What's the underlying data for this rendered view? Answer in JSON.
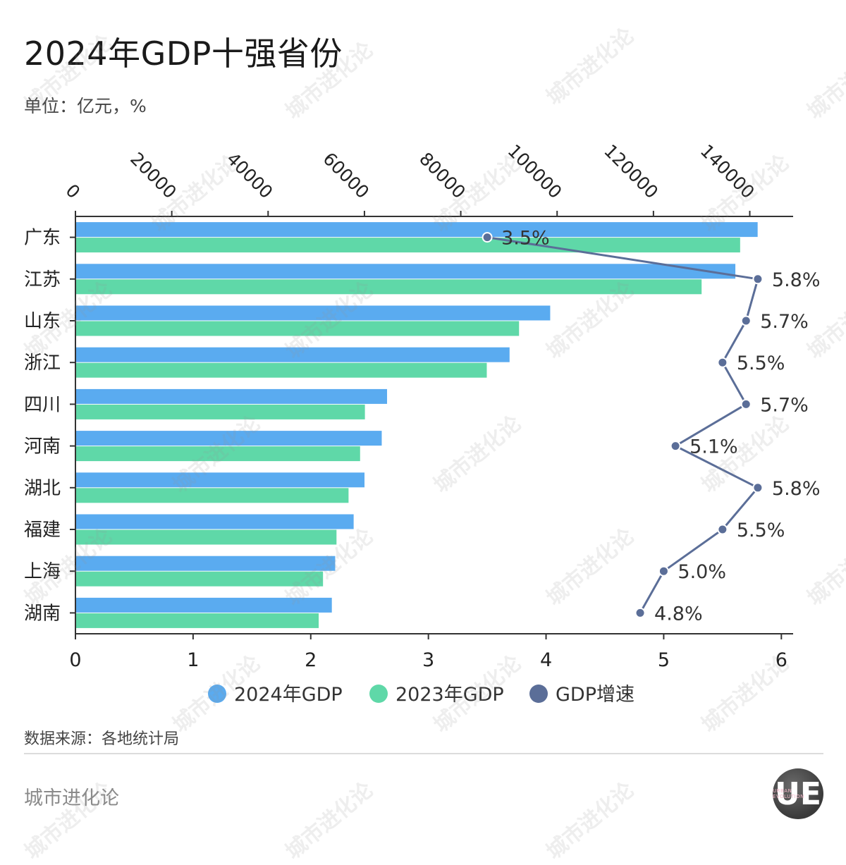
{
  "header": {
    "title": "2024年GDP十强省份",
    "unit": "单位：亿元，%"
  },
  "footer": {
    "source": "数据来源：各地统计局",
    "brand": "城市进化论",
    "logo_text": "UE",
    "logo_sub": "URBAN EVOLUTION"
  },
  "watermark": {
    "text": "城市进化论"
  },
  "colors": {
    "gdp2024": "#5aabf0",
    "gdp2023": "#5fd8a8",
    "growth": "#5b6e98",
    "axis": "#333333"
  },
  "chart_data": {
    "type": "bar",
    "orientation": "horizontal",
    "categories": [
      "广东",
      "江苏",
      "山东",
      "浙江",
      "四川",
      "河南",
      "湖北",
      "福建",
      "上海",
      "湖南"
    ],
    "series": [
      {
        "name": "2024年GDP",
        "type": "bar",
        "axis": "top",
        "values": [
          141634,
          137008,
          98566,
          90131,
          64697,
          63590,
          60013,
          57761,
          53927,
          53231
        ]
      },
      {
        "name": "2023年GDP",
        "type": "bar",
        "axis": "top",
        "values": [
          138000,
          130000,
          92100,
          85400,
          60100,
          59100,
          56700,
          54200,
          51400,
          50500
        ]
      },
      {
        "name": "GDP增速",
        "type": "line",
        "axis": "bottom",
        "values": [
          3.5,
          5.8,
          5.7,
          5.5,
          5.7,
          5.1,
          5.8,
          5.5,
          5.0,
          4.8
        ],
        "labels": [
          "3.5%",
          "5.8%",
          "5.7%",
          "5.5%",
          "5.7%",
          "5.1%",
          "5.8%",
          "5.5%",
          "5.0%",
          "4.8%"
        ]
      }
    ],
    "x_top": {
      "ticks": [
        0,
        20000,
        40000,
        60000,
        80000,
        100000,
        120000,
        140000
      ],
      "range": [
        0,
        149000
      ]
    },
    "x_bottom": {
      "ticks": [
        0,
        1,
        2,
        3,
        4,
        5,
        6
      ],
      "range": [
        0,
        6.1
      ]
    },
    "legend": {
      "position": "bottom-center"
    },
    "grid": false
  }
}
